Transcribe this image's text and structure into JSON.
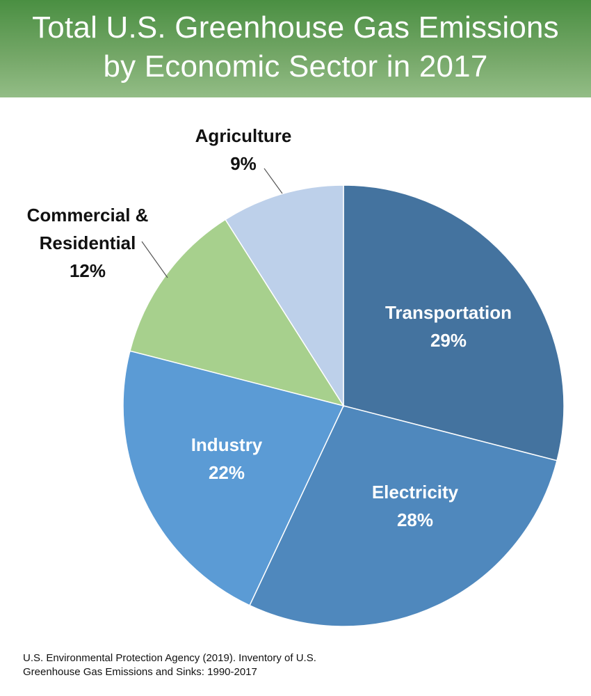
{
  "header": {
    "title_line1": "Total U.S. Greenhouse Gas Emissions",
    "title_line2": "by Economic Sector in 2017"
  },
  "chart_data": {
    "type": "pie",
    "title": "Total U.S. Greenhouse Gas Emissions by Economic Sector in 2017",
    "slices": [
      {
        "label": "Transportation",
        "value": 29,
        "value_label": "29%",
        "color": "#44739f"
      },
      {
        "label": "Electricity",
        "value": 28,
        "value_label": "28%",
        "color": "#4f88bd"
      },
      {
        "label": "Industry",
        "value": 22,
        "value_label": "22%",
        "color": "#5b9bd5"
      },
      {
        "label": "Commercial & Residential",
        "label_lines": [
          "Commercial &",
          "Residential"
        ],
        "value": 12,
        "value_label": "12%",
        "color": "#a7d08d"
      },
      {
        "label": "Agriculture",
        "value": 9,
        "value_label": "9%",
        "color": "#bdd0ea"
      }
    ]
  },
  "source": {
    "line1": "U.S. Environmental Protection Agency (2019). Inventory of U.S.",
    "line2": "Greenhouse Gas Emissions and Sinks: 1990-2017"
  }
}
